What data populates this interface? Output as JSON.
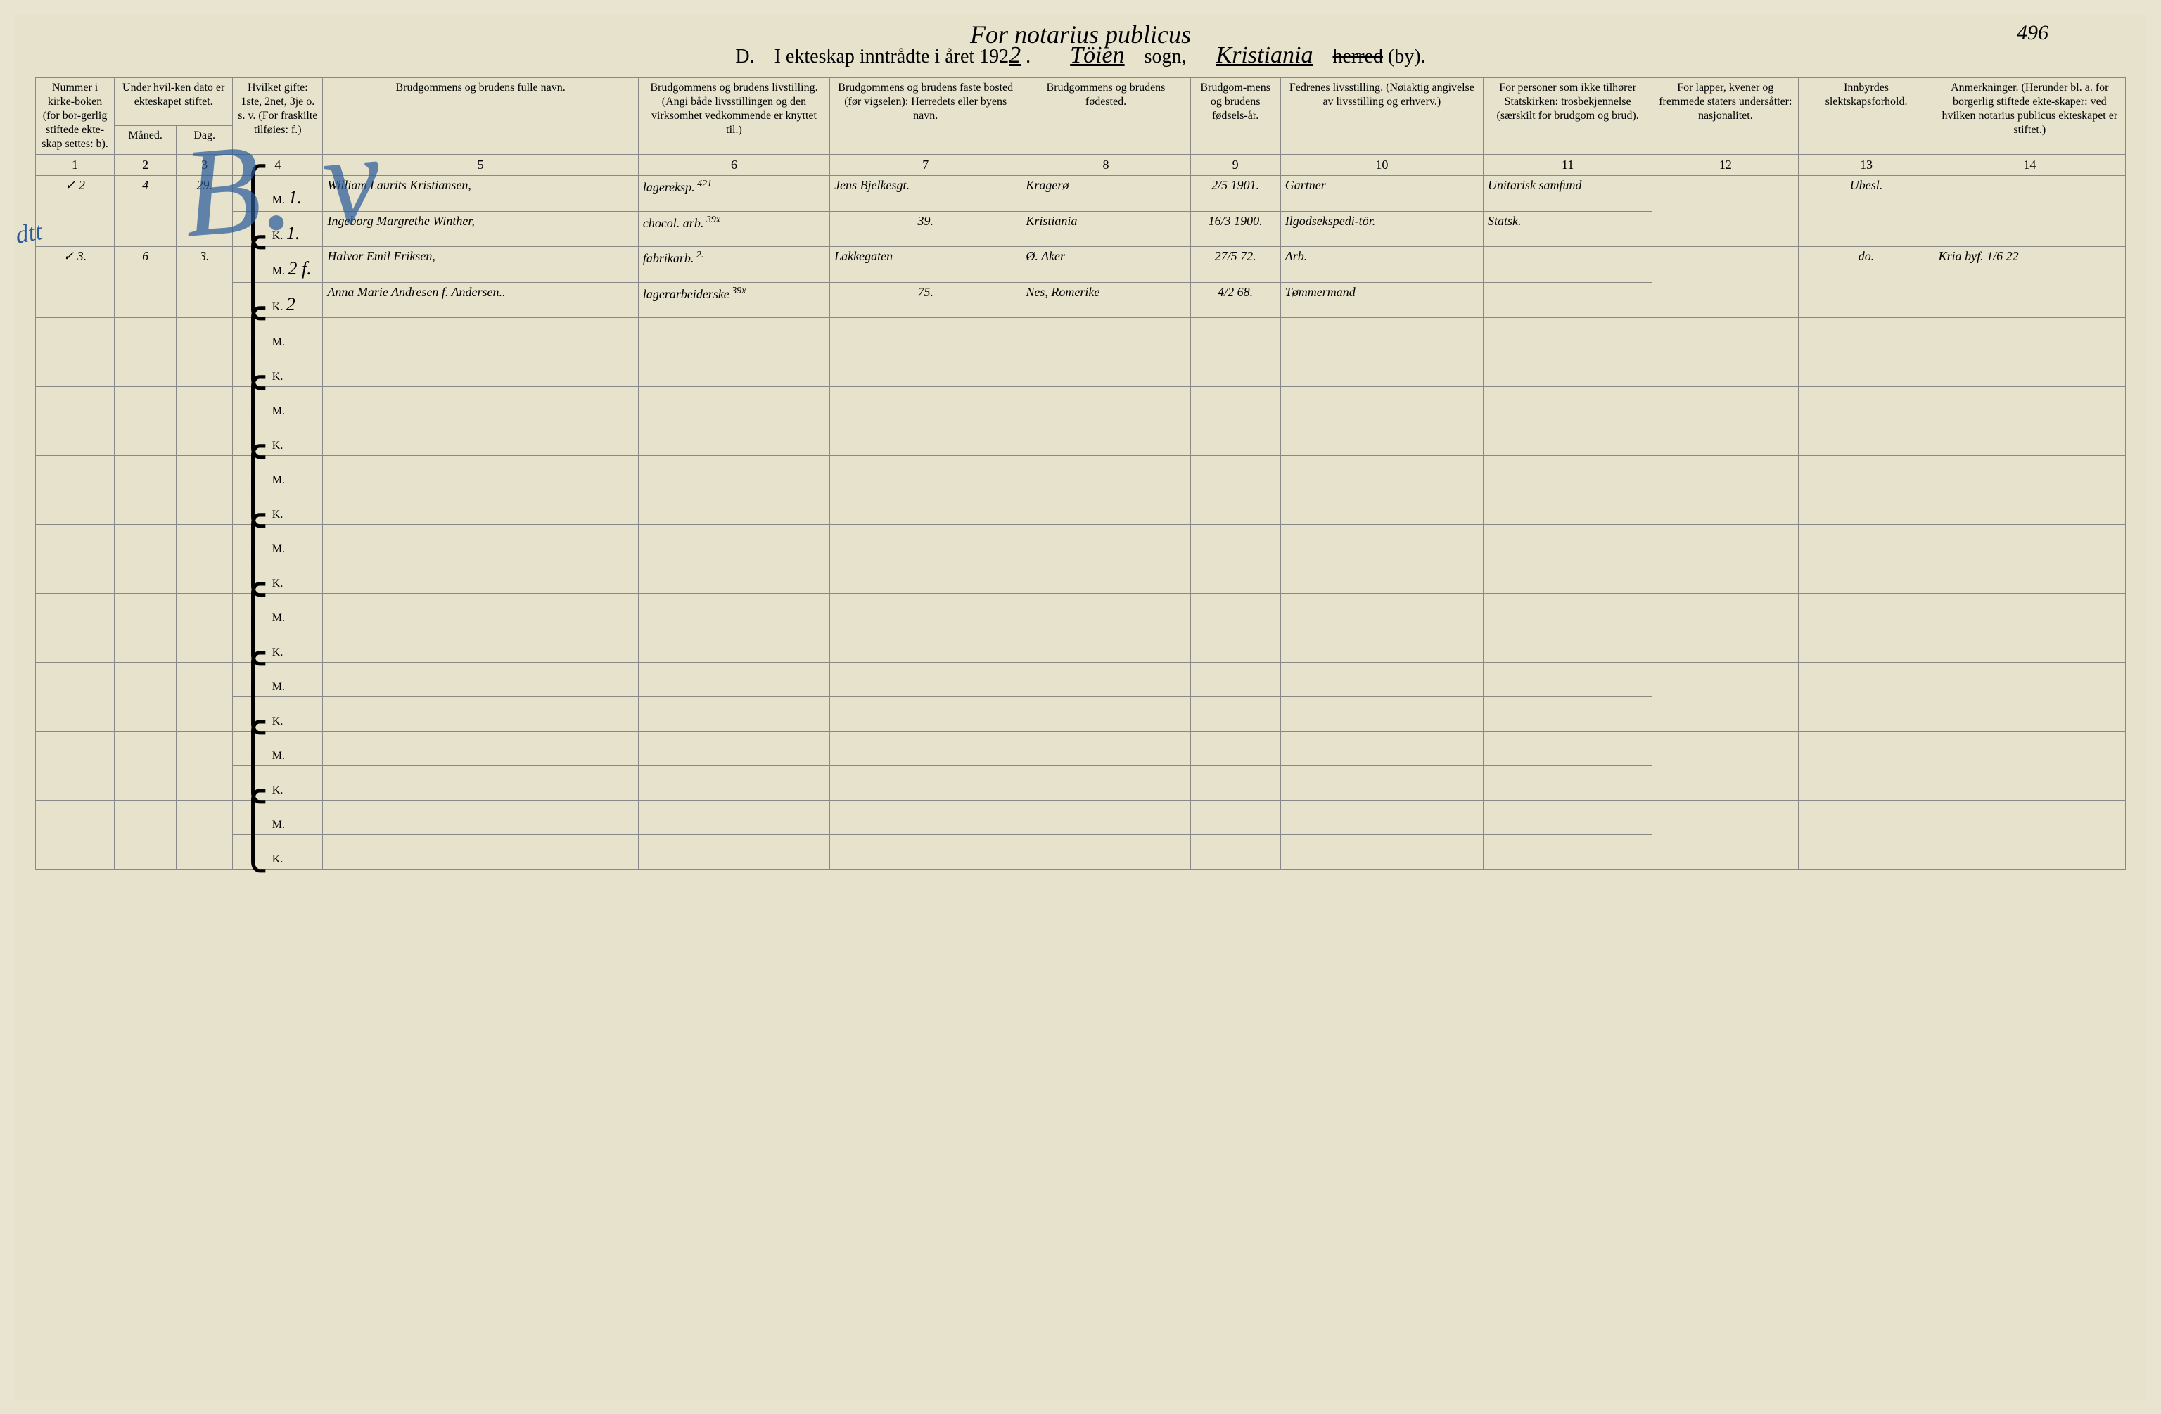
{
  "colors": {
    "paper": "#e6e2cc",
    "ink": "#3a3a2a",
    "stamp_blue": "#2a5a9a",
    "rule": "#888888"
  },
  "fonts": {
    "printed": "Georgia, serif",
    "script": "Brush Script MT, cursive",
    "header_size_pt": 28,
    "subtitle_size_pt": 36,
    "cell_script_size_pt": 26,
    "th_size_pt": 16
  },
  "header": {
    "subtitle_script": "For notarius publicus",
    "page_number_script": "496",
    "line_D": "D.",
    "line_text_1": "I ekteskap inntrådte i året 192",
    "year_suffix_script": "2",
    "sogn_script": "Töien",
    "sogn_label": "sogn,",
    "by_script": "Kristiania",
    "herred_struck": "herred",
    "by_label": "(by)."
  },
  "stamp_text": "B. v",
  "margin_note": "dtt",
  "columns": [
    {
      "num": "1",
      "label": "Nummer i kirke-boken (for bor-gerlig stiftede ekte-skap settes: b)."
    },
    {
      "num": "2",
      "label": "Måned."
    },
    {
      "num": "3",
      "label": "Dag."
    },
    {
      "num": "4",
      "label": "Hvilket gifte: 1ste, 2net, 3je o. s. v. (For fraskilte tilføies: f.)"
    },
    {
      "num": "5",
      "label": "Brudgommens og brudens fulle navn."
    },
    {
      "num": "6",
      "label": "Brudgommens og brudens livstilling. (Angi både livsstillingen og den virksomhet vedkommende er knyttet til.)"
    },
    {
      "num": "7",
      "label": "Brudgommens og brudens faste bosted (før vigselen): Herredets eller byens navn."
    },
    {
      "num": "8",
      "label": "Brudgommens og brudens fødested."
    },
    {
      "num": "9",
      "label": "Brudgom-mens og brudens fødsels-år."
    },
    {
      "num": "10",
      "label": "Fedrenes livsstilling. (Nøiaktig angivelse av livsstilling og erhverv.)"
    },
    {
      "num": "11",
      "label": "For personer som ikke tilhører Statskirken: trosbekjennelse (særskilt for brudgom og brud)."
    },
    {
      "num": "12",
      "label": "For lapper, kvener og fremmede staters undersåtter: nasjonalitet."
    },
    {
      "num": "13",
      "label": "Innbyrdes slektskapsforhold."
    },
    {
      "num": "14",
      "label": "Anmerkninger. (Herunder bl. a. for borgerlig stiftede ekte-skaper: ved hvilken notarius publicus ekteskapet er stiftet.)"
    }
  ],
  "date_group_label": "Under hvil-ken dato er ekteskapet stiftet.",
  "mk_labels": {
    "m": "M.",
    "k": "K."
  },
  "entries": [
    {
      "tick": "✓",
      "num": "2",
      "month": "4",
      "day": "29.",
      "groom": {
        "gifte": "1.",
        "name": "William Laurits Kristiansen,",
        "occupation": "lagereksp.",
        "occ_note": "421",
        "residence": "Jens Bjelkesgt.",
        "birthplace": "Kragerø",
        "birth": "2/5 1901.",
        "father": "Gartner",
        "faith": "Unitarisk samfund"
      },
      "bride": {
        "gifte": "1.",
        "name": "Ingeborg Margrethe Winther,",
        "occupation": "chocol. arb.",
        "occ_note": "39x",
        "residence": "39.",
        "birthplace": "Kristiania",
        "birth": "16/3 1900.",
        "father": "Ilgodsekspedi-tör.",
        "faith": "Statsk."
      },
      "nationality": "",
      "kinship": "Ubesl.",
      "remarks": ""
    },
    {
      "tick": "✓",
      "num": "3.",
      "month": "6",
      "day": "3.",
      "groom": {
        "gifte": "2 f.",
        "name": "Halvor Emil Eriksen,",
        "occupation": "fabrikarb.",
        "occ_note": "2.",
        "residence": "Lakkegaten",
        "birthplace": "Ø. Aker",
        "birth": "27/5 72.",
        "father": "Arb.",
        "faith": ""
      },
      "bride": {
        "gifte": "2",
        "name": "Anna Marie Andresen f. Andersen..",
        "occupation": "lagerarbeiderske",
        "occ_note": "39x",
        "residence": "75.",
        "birthplace": "Nes, Romerike",
        "birth": "4/2 68.",
        "father": "Tømmermand",
        "faith": ""
      },
      "nationality": "",
      "kinship": "do.",
      "remarks": "Kria byf. 1/6 22"
    }
  ],
  "empty_row_count": 8
}
